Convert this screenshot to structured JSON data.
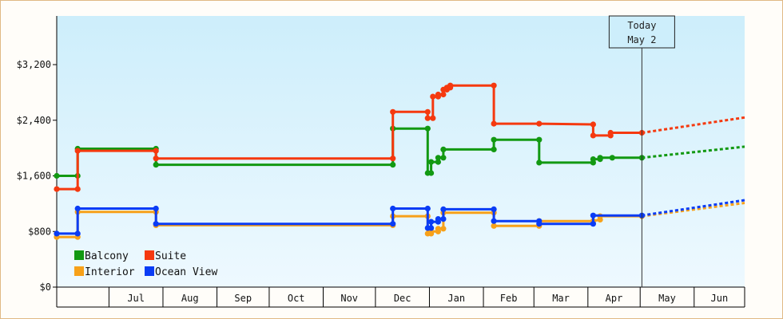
{
  "chart_data": {
    "type": "line",
    "title": "",
    "xlabel": "",
    "ylabel": "",
    "ylim": [
      0,
      3900
    ],
    "yticks": [
      {
        "value": 0,
        "label": "$0"
      },
      {
        "value": 800,
        "label": "$800"
      },
      {
        "value": 1600,
        "label": "$1,600"
      },
      {
        "value": 2400,
        "label": "$2,400"
      },
      {
        "value": 3200,
        "label": "$3,200"
      }
    ],
    "xlim": [
      "2023-06-01",
      "2024-06-30"
    ],
    "month_ticks": [
      {
        "label": "Jul",
        "start": "2023-07-01",
        "end": "2023-08-01"
      },
      {
        "label": "Aug",
        "start": "2023-08-01",
        "end": "2023-09-01"
      },
      {
        "label": "Sep",
        "start": "2023-09-01",
        "end": "2023-10-01"
      },
      {
        "label": "Oct",
        "start": "2023-10-01",
        "end": "2023-11-01"
      },
      {
        "label": "Nov",
        "start": "2023-11-01",
        "end": "2023-12-01"
      },
      {
        "label": "Dec",
        "start": "2023-12-01",
        "end": "2024-01-01"
      },
      {
        "label": "Jan",
        "start": "2024-01-01",
        "end": "2024-02-01"
      },
      {
        "label": "Feb",
        "start": "2024-02-01",
        "end": "2024-03-01"
      },
      {
        "label": "Mar",
        "start": "2024-03-01",
        "end": "2024-04-01"
      },
      {
        "label": "Apr",
        "start": "2024-04-01",
        "end": "2024-05-01"
      },
      {
        "label": "May",
        "start": "2024-05-01",
        "end": "2024-06-01"
      },
      {
        "label": "Jun",
        "start": "2024-06-01",
        "end": "2024-06-30"
      }
    ],
    "today": {
      "date": "2024-05-02",
      "line1": "Today",
      "line2": "May 2"
    },
    "grid": false,
    "legend_position": "bottom-left",
    "legend_order": [
      "Balcony",
      "Suite",
      "Interior",
      "Ocean View"
    ],
    "series": [
      {
        "name": "Balcony",
        "color": "#129912",
        "points": [
          [
            "2023-06-01",
            1600
          ],
          [
            "2023-06-13",
            1600
          ],
          [
            "2023-06-13",
            1990
          ],
          [
            "2023-07-28",
            1990
          ],
          [
            "2023-07-28",
            1760
          ],
          [
            "2023-12-11",
            1760
          ],
          [
            "2023-12-11",
            2280
          ],
          [
            "2023-12-31",
            2280
          ],
          [
            "2023-12-31",
            1640
          ],
          [
            "2024-01-02",
            1640
          ],
          [
            "2024-01-02",
            1800
          ],
          [
            "2024-01-06",
            1800
          ],
          [
            "2024-01-06",
            1860
          ],
          [
            "2024-01-09",
            1860
          ],
          [
            "2024-01-09",
            1980
          ],
          [
            "2024-02-07",
            1980
          ],
          [
            "2024-02-07",
            2120
          ],
          [
            "2024-03-04",
            2120
          ],
          [
            "2024-03-04",
            1790
          ],
          [
            "2024-04-04",
            1790
          ],
          [
            "2024-04-04",
            1840
          ],
          [
            "2024-04-08",
            1840
          ],
          [
            "2024-04-08",
            1860
          ],
          [
            "2024-04-15",
            1860
          ],
          [
            "2024-05-02",
            1860
          ]
        ],
        "forecast": [
          [
            "2024-05-02",
            1860
          ],
          [
            "2024-06-30",
            2020
          ]
        ]
      },
      {
        "name": "Suite",
        "color": "#f5390f",
        "points": [
          [
            "2023-06-01",
            1410
          ],
          [
            "2023-06-13",
            1410
          ],
          [
            "2023-06-13",
            1960
          ],
          [
            "2023-07-28",
            1960
          ],
          [
            "2023-07-28",
            1850
          ],
          [
            "2023-12-11",
            1850
          ],
          [
            "2023-12-11",
            2520
          ],
          [
            "2023-12-31",
            2520
          ],
          [
            "2023-12-31",
            2430
          ],
          [
            "2024-01-03",
            2430
          ],
          [
            "2024-01-03",
            2740
          ],
          [
            "2024-01-06",
            2740
          ],
          [
            "2024-01-06",
            2770
          ],
          [
            "2024-01-09",
            2770
          ],
          [
            "2024-01-09",
            2840
          ],
          [
            "2024-01-11",
            2840
          ],
          [
            "2024-01-11",
            2870
          ],
          [
            "2024-01-13",
            2870
          ],
          [
            "2024-01-13",
            2900
          ],
          [
            "2024-02-07",
            2900
          ],
          [
            "2024-02-07",
            2350
          ],
          [
            "2024-03-04",
            2350
          ],
          [
            "2024-04-04",
            2340
          ],
          [
            "2024-04-04",
            2180
          ],
          [
            "2024-04-14",
            2180
          ],
          [
            "2024-04-14",
            2220
          ],
          [
            "2024-05-02",
            2220
          ]
        ],
        "forecast": [
          [
            "2024-05-02",
            2220
          ],
          [
            "2024-06-30",
            2440
          ]
        ]
      },
      {
        "name": "Interior",
        "color": "#f7a11a",
        "points": [
          [
            "2023-06-01",
            720
          ],
          [
            "2023-06-13",
            720
          ],
          [
            "2023-06-13",
            1080
          ],
          [
            "2023-07-28",
            1080
          ],
          [
            "2023-07-28",
            890
          ],
          [
            "2023-12-11",
            890
          ],
          [
            "2023-12-11",
            1020
          ],
          [
            "2023-12-31",
            1020
          ],
          [
            "2023-12-31",
            770
          ],
          [
            "2024-01-02",
            770
          ],
          [
            "2024-01-02",
            800
          ],
          [
            "2024-01-06",
            800
          ],
          [
            "2024-01-06",
            840
          ],
          [
            "2024-01-09",
            840
          ],
          [
            "2024-01-09",
            1070
          ],
          [
            "2024-02-07",
            1070
          ],
          [
            "2024-02-07",
            880
          ],
          [
            "2024-03-04",
            880
          ],
          [
            "2024-03-04",
            950
          ],
          [
            "2024-04-04",
            950
          ],
          [
            "2024-04-08",
            970
          ],
          [
            "2024-04-08",
            1020
          ],
          [
            "2024-05-02",
            1020
          ]
        ],
        "forecast": [
          [
            "2024-05-02",
            1020
          ],
          [
            "2024-06-30",
            1210
          ]
        ]
      },
      {
        "name": "Ocean View",
        "color": "#0a3cf5",
        "points": [
          [
            "2023-06-01",
            770
          ],
          [
            "2023-06-13",
            770
          ],
          [
            "2023-06-13",
            1130
          ],
          [
            "2023-07-28",
            1130
          ],
          [
            "2023-07-28",
            910
          ],
          [
            "2023-12-11",
            910
          ],
          [
            "2023-12-11",
            1130
          ],
          [
            "2023-12-31",
            1130
          ],
          [
            "2023-12-31",
            850
          ],
          [
            "2024-01-02",
            850
          ],
          [
            "2024-01-02",
            940
          ],
          [
            "2024-01-06",
            940
          ],
          [
            "2024-01-06",
            980
          ],
          [
            "2024-01-09",
            980
          ],
          [
            "2024-01-09",
            1120
          ],
          [
            "2024-02-07",
            1120
          ],
          [
            "2024-02-07",
            950
          ],
          [
            "2024-03-04",
            950
          ],
          [
            "2024-03-04",
            910
          ],
          [
            "2024-04-04",
            910
          ],
          [
            "2024-04-04",
            1030
          ],
          [
            "2024-05-02",
            1030
          ]
        ],
        "forecast": [
          [
            "2024-05-02",
            1030
          ],
          [
            "2024-06-30",
            1250
          ]
        ]
      }
    ]
  }
}
